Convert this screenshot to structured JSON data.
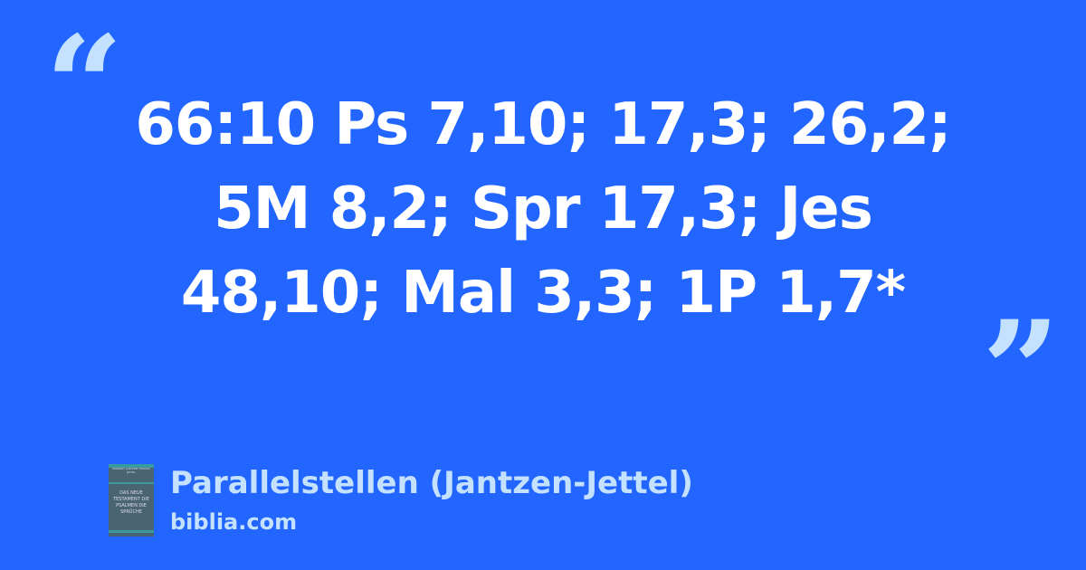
{
  "quote": {
    "open_mark": "“",
    "lines": [
      "66:10 Ps 7,10; 17,3; 26,2;",
      "5M 8,2; Spr 17,3; Jes",
      "48,10; Mal 3,3; 1P 1,7*"
    ],
    "close_mark": "”"
  },
  "source": {
    "title": "Parallelstellen (Jantzen-Jettel)",
    "site": "biblia.com",
    "cover": {
      "authors": "HERBERT JANTZEN THOMAS JETTEL",
      "title": "DAS NEUE TESTAMENT DIE PSALMEN DIE SPRÜCHE"
    }
  },
  "colors": {
    "background": "#2266ff",
    "accent": "#c4e1ff",
    "text": "#ffffff"
  }
}
